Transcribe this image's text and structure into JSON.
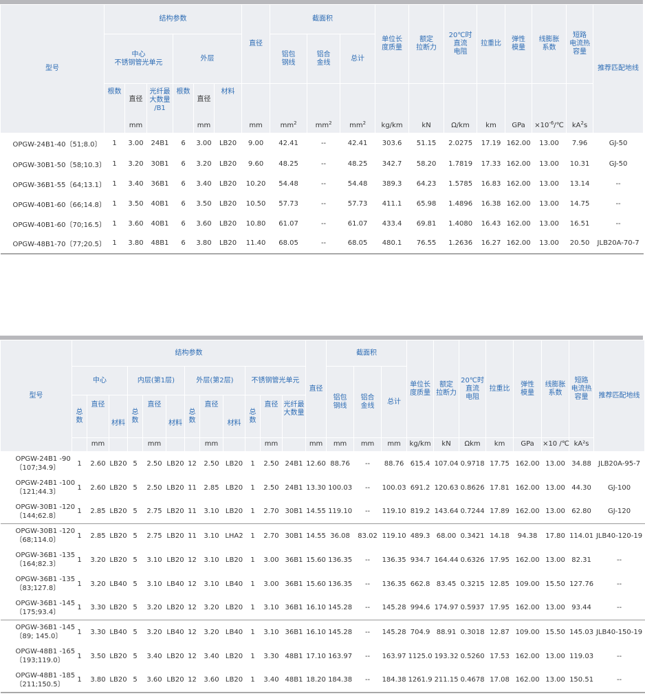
{
  "table1": {
    "header": {
      "model": "型号",
      "structure": "结构参数",
      "center": "中心\n不锈钢管光单元",
      "outer": "外层",
      "count": "根数",
      "diameter": "直径",
      "fiber_max": "光纤最\n大数量\n/B1",
      "material": "材料",
      "overall_diameter": "直径",
      "section_area": "截面积",
      "al_clad": "铝包\n钢线",
      "al_alloy": "铝合\n金线",
      "total": "总计",
      "unit_mass": "单位长\n度质量",
      "rated_strength": "额定\n拉断力",
      "dc_resistance": "20℃时\n直流\n电阻",
      "tensile_ratio": "拉重比",
      "modulus": "弹性\n模量",
      "expansion": "线膨胀\n系数",
      "short_circuit": "短路\n电流热\n容量",
      "ground_wire": "推荐匹配地线"
    },
    "units": {
      "mm": "mm",
      "mm2": "mm",
      "sq": "2",
      "kgkm": "kg/km",
      "kN": "kN",
      "ohm": "Ω/km",
      "km": "km",
      "gpa": "GPa",
      "exp_base": "×10",
      "exp_pow": "-6",
      "exp_unit": "/℃",
      "ka": "kA",
      "ka_pow": "2",
      "ka_s": "s"
    },
    "rows": [
      {
        "model": "OPGW-24B1-40〔51;8.0〕",
        "c_n": "1",
        "c_d": "3.00",
        "c_f": "24B1",
        "o_n": "6",
        "o_d": "3.00",
        "o_m": "LB20",
        "dia": "9.00",
        "al": "42.41",
        "alloy": "--",
        "total": "42.41",
        "mass": "303.6",
        "strength": "51.15",
        "res": "2.0275",
        "ratio": "17.19",
        "mod": "162.00",
        "exp": "13.00",
        "ka": "7.96",
        "ground": "GJ-50"
      },
      {
        "model": "OPGW-30B1-50〔58;10.3〕",
        "c_n": "1",
        "c_d": "3.20",
        "c_f": "30B1",
        "o_n": "6",
        "o_d": "3.20",
        "o_m": "LB20",
        "dia": "9.60",
        "al": "48.25",
        "alloy": "--",
        "total": "48.25",
        "mass": "342.7",
        "strength": "58.20",
        "res": "1.7819",
        "ratio": "17.33",
        "mod": "162.00",
        "exp": "13.00",
        "ka": "10.31",
        "ground": "GJ-50"
      },
      {
        "model": "OPGW-36B1-55〔64;13.1〕",
        "c_n": "1",
        "c_d": "3.40",
        "c_f": "36B1",
        "o_n": "6",
        "o_d": "3.40",
        "o_m": "LB20",
        "dia": "10.20",
        "al": "54.48",
        "alloy": "--",
        "total": "54.48",
        "mass": "389.3",
        "strength": "64.23",
        "res": "1.5785",
        "ratio": "16.83",
        "mod": "162.00",
        "exp": "13.00",
        "ka": "13.14",
        "ground": "--"
      },
      {
        "model": "OPGW-40B1-60〔66;14.8〕",
        "c_n": "1",
        "c_d": "3.50",
        "c_f": "40B1",
        "o_n": "6",
        "o_d": "3.50",
        "o_m": "LB20",
        "dia": "10.50",
        "al": "57.73",
        "alloy": "--",
        "total": "57.73",
        "mass": "411.1",
        "strength": "65.98",
        "res": "1.4896",
        "ratio": "16.38",
        "mod": "162.00",
        "exp": "13.00",
        "ka": "14.75",
        "ground": "--"
      },
      {
        "model": "OPGW-40B1-60〔70;16.5〕",
        "c_n": "1",
        "c_d": "3.60",
        "c_f": "40B1",
        "o_n": "6",
        "o_d": "3.60",
        "o_m": "LB20",
        "dia": "10.80",
        "al": "61.07",
        "alloy": "--",
        "total": "61.07",
        "mass": "433.4",
        "strength": "69.81",
        "res": "1.4080",
        "ratio": "16.43",
        "mod": "162.00",
        "exp": "13.00",
        "ka": "16.51",
        "ground": "--"
      },
      {
        "model": "OPGW-48B1-70〔77;20.5〕",
        "c_n": "1",
        "c_d": "3.80",
        "c_f": "48B1",
        "o_n": "6",
        "o_d": "3.80",
        "o_m": "LB20",
        "dia": "11.40",
        "al": "68.05",
        "alloy": "--",
        "total": "68.05",
        "mass": "480.1",
        "strength": "76.55",
        "res": "1.2636",
        "ratio": "16.27",
        "mod": "162.00",
        "exp": "13.00",
        "ka": "20.50",
        "ground": "JLB20A-70-7"
      }
    ]
  },
  "table2": {
    "header": {
      "model": "型号",
      "structure": "结构参数",
      "center": "中心",
      "inner": "内层(第1层)",
      "outer": "外层(第2层)",
      "steel_tube": "不锈钢管光单元",
      "count": "总\n数",
      "diameter": "直径",
      "material": "材料",
      "fiber_max": "光纤最\n大数量",
      "overall_diameter": "直径",
      "section_area": "截面积",
      "al_clad": "铝包\n钢线",
      "al_alloy": "铝合\n金线",
      "total": "总计",
      "unit_mass": "单位长\n度质量",
      "rated_strength": "额定\n拉断力",
      "dc_resistance": "20℃时\n直流\n电阻",
      "tensile_ratio": "拉重比",
      "modulus": "弹性\n模量",
      "expansion": "线膨胀\n系数",
      "short_circuit": "短路\n电流热\n容量",
      "ground_wire": "推荐匹配地线"
    },
    "units": {
      "mm": "mm",
      "kgkm": "kg/km",
      "kN": "kN",
      "ohm": "Ωkm",
      "km": "km",
      "gpa": "GPa",
      "exp": "×10 /℃",
      "ka": "kA²s"
    },
    "rows": [
      {
        "model1": "OPGW-24B1 -90",
        "model2": "〔107;34.9〕",
        "c_n": "1",
        "c_d": "2.60",
        "c_m": "LB20",
        "i_n": "5",
        "i_d": "2.50",
        "i_m": "LB20",
        "o_n": "12",
        "o_d": "2.50",
        "o_m": "LB20",
        "s_n": "1",
        "s_d": "2.50",
        "s_f": "24B1",
        "dia": "12.60",
        "al": "88.76",
        "alloy": "--",
        "total": "88.76",
        "mass": "615.4",
        "strength": "107.04",
        "res": "0.9718",
        "ratio": "17.75",
        "mod": "162.00",
        "exp": "13.00",
        "ka": "34.88",
        "ground": "JLB20A-95-7",
        "grp": false
      },
      {
        "model1": "OPGW-24B1 -100",
        "model2": "〔121;44.3〕",
        "c_n": "1",
        "c_d": "2.60",
        "c_m": "LB20",
        "i_n": "5",
        "i_d": "2.50",
        "i_m": "LB20",
        "o_n": "11",
        "o_d": "2.85",
        "o_m": "LB20",
        "s_n": "1",
        "s_d": "2.50",
        "s_f": "24B1",
        "dia": "13.30",
        "al": "100.03",
        "alloy": "--",
        "total": "100.03",
        "mass": "691.2",
        "strength": "120.63",
        "res": "0.8626",
        "ratio": "17.81",
        "mod": "162.00",
        "exp": "13.00",
        "ka": "44.30",
        "ground": "GJ-100",
        "grp": false
      },
      {
        "model1": "OPGW-30B1 -120",
        "model2": "〔144;62.8〕",
        "c_n": "1",
        "c_d": "2.85",
        "c_m": "LB20",
        "i_n": "5",
        "i_d": "2.75",
        "i_m": "LB20",
        "o_n": "11",
        "o_d": "3.10",
        "o_m": "LB20",
        "s_n": "1",
        "s_d": "2.70",
        "s_f": "30B1",
        "dia": "14.55",
        "al": "119.10",
        "alloy": "--",
        "total": "119.10",
        "mass": "819.2",
        "strength": "143.64",
        "res": "0.7244",
        "ratio": "17.89",
        "mod": "162.00",
        "exp": "13.00",
        "ka": "62.80",
        "ground": "GJ-120",
        "grp": false
      },
      {
        "model1": "OPGW-30B1 -120",
        "model2": "〔68;114.0〕",
        "c_n": "1",
        "c_d": "2.85",
        "c_m": "LB20",
        "i_n": "5",
        "i_d": "2.75",
        "i_m": "LB20",
        "o_n": "11",
        "o_d": "3.10",
        "o_m": "LHA2",
        "s_n": "1",
        "s_d": "2.70",
        "s_f": "30B1",
        "dia": "14.55",
        "al": "36.08",
        "alloy": "83.02",
        "total": "119.10",
        "mass": "489.3",
        "strength": "68.00",
        "res": "0.3421",
        "ratio": "14.18",
        "mod": "94.38",
        "exp": "17.80",
        "ka": "114.01",
        "ground": "JLB40-120-19",
        "grp": true
      },
      {
        "model1": "OPGW-36B1 -135",
        "model2": "〔164;82.3〕",
        "c_n": "1",
        "c_d": "3.20",
        "c_m": "LB20",
        "i_n": "5",
        "i_d": "3.10",
        "i_m": "LB20",
        "o_n": "12",
        "o_d": "3.10",
        "o_m": "LB20",
        "s_n": "1",
        "s_d": "3.00",
        "s_f": "36B1",
        "dia": "15.60",
        "al": "136.35",
        "alloy": "--",
        "total": "136.35",
        "mass": "934.7",
        "strength": "164.44",
        "res": "0.6326",
        "ratio": "17.95",
        "mod": "162.00",
        "exp": "13.00",
        "ka": "82.31",
        "ground": "--",
        "grp": false
      },
      {
        "model1": "OPGW-36B1 -135",
        "model2": "〔83;127.8〕",
        "c_n": "1",
        "c_d": "3.20",
        "c_m": "LB40",
        "i_n": "5",
        "i_d": "3.10",
        "i_m": "LB40",
        "o_n": "12",
        "o_d": "3.10",
        "o_m": "LB40",
        "s_n": "1",
        "s_d": "3.00",
        "s_f": "36B1",
        "dia": "15.60",
        "al": "136.35",
        "alloy": "--",
        "total": "136.35",
        "mass": "662.8",
        "strength": "83.45",
        "res": "0.3215",
        "ratio": "12.85",
        "mod": "109.00",
        "exp": "15.50",
        "ka": "127.76",
        "ground": "--",
        "grp": false
      },
      {
        "model1": "OPGW-36B1 -145",
        "model2": "〔175;93.4〕",
        "c_n": "1",
        "c_d": "3.30",
        "c_m": "LB20",
        "i_n": "5",
        "i_d": "3.20",
        "i_m": "LB20",
        "o_n": "12",
        "o_d": "3.20",
        "o_m": "LB20",
        "s_n": "1",
        "s_d": "3.10",
        "s_f": "36B1",
        "dia": "16.10",
        "al": "145.28",
        "alloy": "--",
        "total": "145.28",
        "mass": "994.6",
        "strength": "174.97",
        "res": "0.5937",
        "ratio": "17.95",
        "mod": "162.00",
        "exp": "13.00",
        "ka": "93.44",
        "ground": "--",
        "grp": false
      },
      {
        "model1": "OPGW-36B1 -145",
        "model2": "〔89; 145.0〕",
        "c_n": "1",
        "c_d": "3.30",
        "c_m": "LB40",
        "i_n": "5",
        "i_d": "3.20",
        "i_m": "LB40",
        "o_n": "12",
        "o_d": "3.20",
        "o_m": "LB40",
        "s_n": "1",
        "s_d": "3.10",
        "s_f": "36B1",
        "dia": "16.10",
        "al": "145.28",
        "alloy": "--",
        "total": "145.28",
        "mass": "704.9",
        "strength": "88.91",
        "res": "0.3018",
        "ratio": "12.87",
        "mod": "109.00",
        "exp": "15.50",
        "ka": "145.03",
        "ground": "JLB40-150-19",
        "grp": true
      },
      {
        "model1": "OPGW-48B1 -165",
        "model2": "〔193;119.0〕",
        "c_n": "1",
        "c_d": "3.50",
        "c_m": "LB20",
        "i_n": "5",
        "i_d": "3.40",
        "i_m": "LB20",
        "o_n": "12",
        "o_d": "3.40",
        "o_m": "LB20",
        "s_n": "1",
        "s_d": "3.30",
        "s_f": "48B1",
        "dia": "17.10",
        "al": "163.97",
        "alloy": "--",
        "total": "163.97",
        "mass": "1125.0",
        "strength": "193.32",
        "res": "0.5260",
        "ratio": "17.53",
        "mod": "162.00",
        "exp": "13.00",
        "ka": "119.03",
        "ground": "--",
        "grp": false
      },
      {
        "model1": "OPGW-48B1 -185",
        "model2": "〔211;150.5〕",
        "c_n": "1",
        "c_d": "3.80",
        "c_m": "LB20",
        "i_n": "5",
        "i_d": "3.60",
        "i_m": "LB20",
        "o_n": "12",
        "o_d": "3.60",
        "o_m": "LB20",
        "s_n": "1",
        "s_d": "3.40",
        "s_f": "48B1",
        "dia": "18.20",
        "al": "184.38",
        "alloy": "--",
        "total": "184.38",
        "mass": "1261.9",
        "strength": "211.15",
        "res": "0.4678",
        "ratio": "17.08",
        "mod": "162.00",
        "exp": "13.00",
        "ka": "150.51",
        "ground": "--",
        "grp": false
      }
    ]
  }
}
